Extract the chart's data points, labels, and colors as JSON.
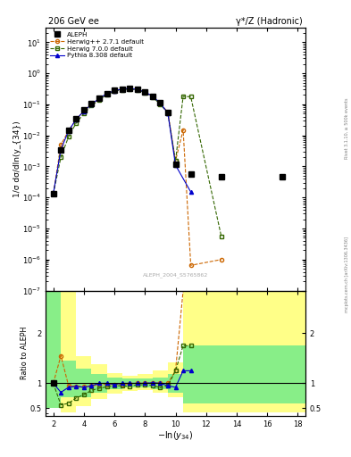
{
  "title_left": "206 GeV ee",
  "title_right": "γ*/Z (Hadronic)",
  "xlabel": "-ln(y_{34})",
  "ylabel_main": "1/σ dσ/dln(y_{34})",
  "ylabel_ratio": "Ratio to ALEPH",
  "watermark": "ALEPH_2004_S5765862",
  "right_label_top": "Rivet 3.1.10, ≥ 500k events",
  "right_label_bot": "mcplots.cern.ch [arXiv:1306.3436]",
  "aleph_x": [
    2.0,
    2.5,
    3.0,
    3.5,
    4.0,
    4.5,
    5.0,
    5.5,
    6.0,
    6.5,
    7.0,
    7.5,
    8.0,
    8.5,
    9.0,
    9.5,
    10.0,
    11.0,
    13.0,
    17.0
  ],
  "aleph_y": [
    0.00013,
    0.0035,
    0.015,
    0.035,
    0.065,
    0.105,
    0.155,
    0.22,
    0.28,
    0.31,
    0.33,
    0.3,
    0.25,
    0.18,
    0.11,
    0.055,
    0.0012,
    0.00055,
    0.00045,
    0.00045
  ],
  "herwig271_x": [
    2.0,
    2.5,
    3.0,
    3.5,
    4.0,
    4.5,
    5.0,
    5.5,
    6.0,
    6.5,
    7.0,
    7.5,
    8.0,
    8.5,
    9.0,
    9.5,
    10.0,
    10.5,
    11.0,
    13.0
  ],
  "herwig271_y": [
    0.00013,
    0.005,
    0.014,
    0.033,
    0.06,
    0.1,
    0.15,
    0.215,
    0.275,
    0.305,
    0.325,
    0.3,
    0.25,
    0.182,
    0.11,
    0.055,
    0.0015,
    0.015,
    6.5e-07,
    1e-06
  ],
  "herwig700_x": [
    2.0,
    2.5,
    3.0,
    3.5,
    4.0,
    4.5,
    5.0,
    5.5,
    6.0,
    6.5,
    7.0,
    7.5,
    8.0,
    8.5,
    9.0,
    9.5,
    10.0,
    10.5,
    11.0,
    13.0
  ],
  "herwig700_y": [
    0.00013,
    0.002,
    0.009,
    0.025,
    0.05,
    0.09,
    0.14,
    0.205,
    0.265,
    0.295,
    0.31,
    0.29,
    0.242,
    0.172,
    0.1,
    0.052,
    0.0015,
    0.18,
    0.175,
    5.5e-06
  ],
  "pythia_x": [
    2.0,
    2.5,
    3.0,
    3.5,
    4.0,
    4.5,
    5.0,
    5.5,
    6.0,
    6.5,
    7.0,
    7.5,
    8.0,
    8.5,
    9.0,
    9.5,
    10.0,
    11.0
  ],
  "pythia_y": [
    0.00013,
    0.0035,
    0.014,
    0.033,
    0.06,
    0.1,
    0.155,
    0.22,
    0.275,
    0.31,
    0.33,
    0.3,
    0.25,
    0.182,
    0.11,
    0.052,
    0.0011,
    0.00015
  ],
  "aleph_color": "#000000",
  "herwig271_color": "#cc6600",
  "herwig700_color": "#336600",
  "pythia_color": "#0000cc",
  "xlim": [
    1.5,
    18.5
  ],
  "ylim_main": [
    1e-07,
    30.0
  ],
  "ylim_ratio": [
    0.35,
    2.85
  ],
  "band_edges": [
    1.5,
    2.5,
    3.5,
    4.5,
    5.5,
    6.5,
    7.5,
    8.5,
    9.5,
    10.5,
    11.5,
    14.0,
    16.0,
    18.5
  ],
  "band_yellow_lo": [
    0.5,
    0.42,
    0.55,
    0.68,
    0.8,
    0.85,
    0.87,
    0.82,
    0.72,
    0.42,
    0.42,
    0.42,
    0.42,
    0.42
  ],
  "band_yellow_hi": [
    2.85,
    2.85,
    1.55,
    1.38,
    1.2,
    1.15,
    1.18,
    1.25,
    1.42,
    2.85,
    2.85,
    2.85,
    2.85,
    2.85
  ],
  "band_green_lo": [
    0.5,
    0.72,
    0.72,
    0.82,
    0.88,
    0.91,
    0.91,
    0.88,
    0.82,
    0.6,
    0.6,
    0.6,
    0.6,
    0.6
  ],
  "band_green_hi": [
    2.85,
    1.45,
    1.3,
    1.18,
    1.12,
    1.09,
    1.09,
    1.12,
    1.18,
    1.75,
    1.75,
    1.75,
    1.75,
    1.75
  ],
  "herwig271_ratio_x": [
    2.0,
    2.5,
    3.0,
    3.5,
    4.0,
    4.5,
    5.0,
    5.5,
    6.0,
    6.5,
    7.0,
    7.5,
    8.0,
    8.5,
    9.0,
    9.5,
    10.0,
    10.5
  ],
  "herwig271_ratio_y": [
    1.0,
    1.55,
    0.95,
    0.94,
    0.93,
    0.95,
    0.97,
    0.98,
    0.98,
    0.98,
    0.99,
    1.0,
    1.0,
    1.01,
    1.0,
    1.0,
    1.25,
    27.0
  ],
  "herwig700_ratio_x": [
    2.0,
    2.5,
    3.0,
    3.5,
    4.0,
    4.5,
    5.0,
    5.5,
    6.0,
    6.5,
    7.0,
    7.5,
    8.0,
    8.5,
    9.0,
    9.5,
    10.0,
    10.5,
    11.0
  ],
  "herwig700_ratio_y": [
    1.0,
    0.57,
    0.6,
    0.71,
    0.77,
    0.86,
    0.9,
    0.93,
    0.95,
    0.95,
    0.94,
    0.97,
    0.97,
    0.96,
    0.91,
    0.95,
    1.25,
    1.75,
    1.75
  ],
  "pythia_ratio_x": [
    2.0,
    2.5,
    3.0,
    3.5,
    4.0,
    4.5,
    5.0,
    5.5,
    6.0,
    6.5,
    7.0,
    7.5,
    8.0,
    8.5,
    9.0,
    9.5,
    10.0,
    10.5,
    11.0
  ],
  "pythia_ratio_y": [
    1.0,
    0.82,
    0.92,
    0.94,
    0.92,
    0.95,
    1.0,
    1.0,
    0.98,
    1.0,
    1.0,
    1.0,
    1.0,
    1.01,
    1.0,
    0.95,
    0.92,
    1.25,
    1.25
  ]
}
